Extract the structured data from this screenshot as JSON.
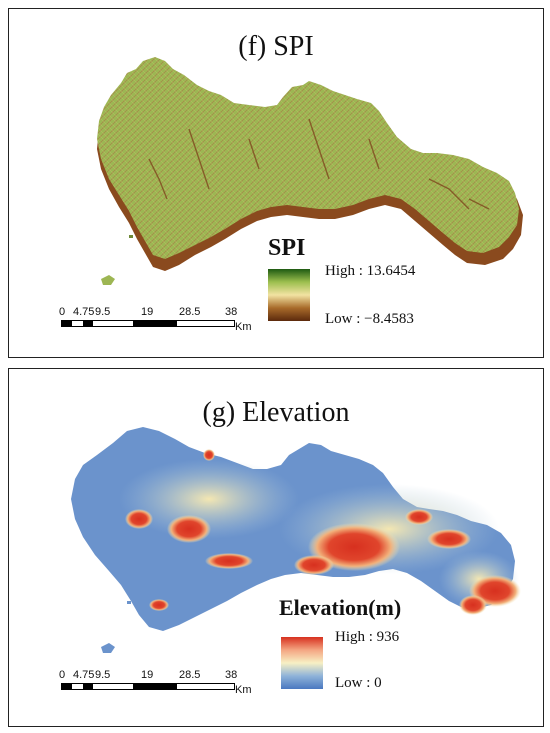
{
  "panels": {
    "spi": {
      "title": "(f) SPI",
      "legend": {
        "title": "SPI",
        "high": "High : 13.6454",
        "low": "Low : −8.4583",
        "colors": [
          "#1e5a12",
          "#9cbf4e",
          "#f2e3a2",
          "#a86b2a",
          "#5c2a0c"
        ]
      },
      "map_colors": {
        "fill": "#9cb552",
        "shadow": "#8a4a1e",
        "channels": "#8a4a1e"
      }
    },
    "elevation": {
      "title": "(g) Elevation",
      "legend": {
        "title": "Elevation(m)",
        "high": "High : 936",
        "low": "Low : 0",
        "colors": [
          "#d7301f",
          "#f4a582",
          "#f7f0c4",
          "#8fb3d9",
          "#4a78c0"
        ]
      },
      "map_colors": {
        "low": "#5b86c8",
        "mid": "#f3e6b0",
        "high": "#d7301f"
      }
    }
  },
  "scalebar": {
    "ticks": [
      "0",
      "4.75",
      "9.5",
      "19",
      "28.5",
      "38"
    ],
    "unit": "Km"
  }
}
